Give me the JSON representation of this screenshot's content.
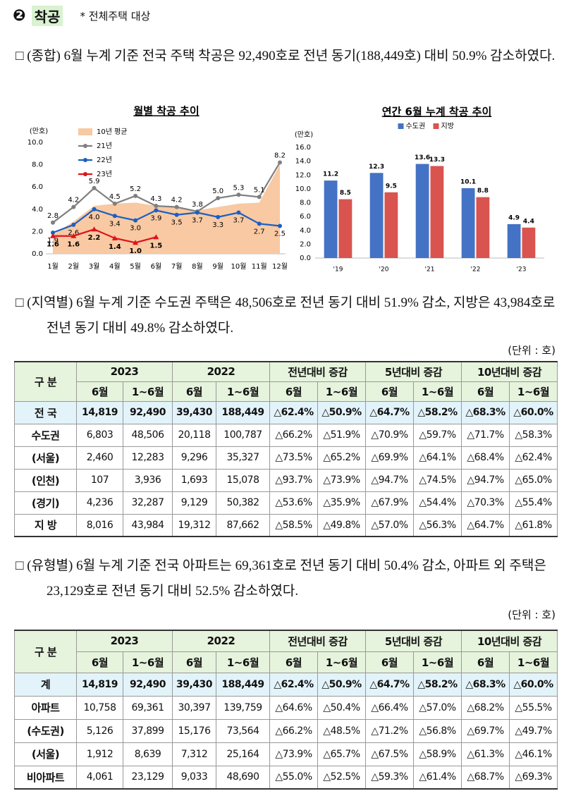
{
  "header": {
    "num": "❷",
    "title": "착공",
    "note": "* 전체주택 대상"
  },
  "paragraphs": [
    "□ (종합) 6월 누계 기준 전국 주택 착공은 92,490호로 전년 동기(188,449호) 대비 50.9% 감소하였다.",
    "□ (지역별) 6월 누계 기준 수도권 주택은 48,506호로 전년 동기 대비 51.9% 감소, 지방은 43,984호로 전년 동기 대비 49.8% 감소하였다.",
    "□ (유형별) 6월 누계 기준 전국 아파트는 69,361호로 전년 동기 대비 50.4% 감소, 아파트 외 주택은 23,129호로 전년 동기 대비 52.5% 감소하였다."
  ],
  "chart_data": [
    {
      "type": "line",
      "title": "월별 착공 추이",
      "y_label": "(만호)",
      "categories": [
        "1월",
        "2월",
        "3월",
        "4월",
        "5월",
        "6월",
        "7월",
        "8월",
        "9월",
        "10월",
        "11월",
        "12월"
      ],
      "ylim": [
        0,
        10
      ],
      "yticks": [
        {
          "value": 0,
          "label": "0.0"
        },
        {
          "value": 2,
          "label": "2.0"
        },
        {
          "value": 4,
          "label": "4.0"
        },
        {
          "value": 6,
          "label": "6.0"
        },
        {
          "value": 8,
          "label": "8.0"
        },
        {
          "value": 10,
          "label": "10.0"
        }
      ],
      "series": [
        {
          "name": "10년 평균",
          "style": "area",
          "color": "#f8c9a2",
          "values": [
            1.7,
            2.9,
            4.3,
            4.5,
            4.6,
            4.3,
            4.2,
            3.9,
            4.2,
            4.5,
            4.6,
            8.0
          ]
        },
        {
          "name": "21년",
          "color": "#7f7f7f",
          "values": [
            2.8,
            4.2,
            5.9,
            4.5,
            5.2,
            4.3,
            4.2,
            3.8,
            5.0,
            5.3,
            5.1,
            8.2
          ],
          "value_labels": [
            "2.8",
            "4.2",
            "5.9",
            "4.5",
            "5.2",
            "4.3",
            "4.2",
            "3.8",
            "5.0",
            "5.3",
            "5.1",
            "8.2"
          ]
        },
        {
          "name": "22년",
          "color": "#1a5fc4",
          "values": [
            1.9,
            2.6,
            4.0,
            3.4,
            3.0,
            3.9,
            3.5,
            3.7,
            3.3,
            3.7,
            2.7,
            2.5
          ],
          "value_labels": [
            "1.9",
            "2.6",
            "4.0",
            "3.4",
            "3.0",
            "3.9",
            "3.5",
            "3.7",
            "3.3",
            "3.7",
            "2.7",
            "2.5"
          ]
        },
        {
          "name": "23년",
          "color": "#e0121b",
          "values": [
            1.6,
            1.6,
            2.2,
            1.4,
            1.0,
            1.5,
            null,
            null,
            null,
            null,
            null,
            null
          ],
          "value_labels": [
            "1.6",
            "1.6",
            "2.2",
            "1.4",
            "1.0",
            "1.5",
            null,
            null,
            null,
            null,
            null,
            null
          ]
        }
      ]
    },
    {
      "type": "bar",
      "title": "연간 6월 누계 착공 추이",
      "y_label": "(만호)",
      "categories": [
        "'19",
        "'20",
        "'21",
        "'22",
        "'23"
      ],
      "ylim": [
        0,
        16
      ],
      "yticks": [
        {
          "value": 0,
          "label": "0.0"
        },
        {
          "value": 2,
          "label": "2.0"
        },
        {
          "value": 4,
          "label": "4.0"
        },
        {
          "value": 6,
          "label": "6.0"
        },
        {
          "value": 8,
          "label": "8.0"
        },
        {
          "value": 10,
          "label": "10.0"
        },
        {
          "value": 12,
          "label": "12.0"
        },
        {
          "value": 14,
          "label": "14.0"
        },
        {
          "value": 16,
          "label": "16.0"
        }
      ],
      "series": [
        {
          "name": "수도권",
          "color": "#4472c4",
          "values": [
            11.2,
            12.3,
            13.6,
            10.1,
            4.9
          ]
        },
        {
          "name": "지방",
          "color": "#d9534f",
          "values": [
            8.5,
            9.5,
            13.3,
            8.8,
            4.4
          ]
        }
      ]
    }
  ],
  "tables": [
    {
      "unit": "(단위 : 호)",
      "header": {
        "label": "구 분",
        "groups": [
          "2023",
          "2022",
          "전년대비 증감",
          "5년대비 증감",
          "10년대비 증감"
        ],
        "sub": [
          "6월",
          "1~6월",
          "6월",
          "1~6월",
          "6월",
          "1~6월",
          "6월",
          "1~6월",
          "6월",
          "1~6월"
        ]
      },
      "rows": [
        {
          "label": "전 국",
          "cells": [
            "14,819",
            "92,490",
            "39,430",
            "188,449",
            "△62.4%",
            "△50.9%",
            "△64.7%",
            "△58.2%",
            "△68.3%",
            "△60.0%"
          ]
        },
        {
          "label": "수도권",
          "cells": [
            "6,803",
            "48,506",
            "20,118",
            "100,787",
            "△66.2%",
            "△51.9%",
            "△70.9%",
            "△59.7%",
            "△71.7%",
            "△58.3%"
          ]
        },
        {
          "label": "(서울)",
          "cells": [
            "2,460",
            "12,283",
            "9,296",
            "35,327",
            "△73.5%",
            "△65.2%",
            "△69.9%",
            "△64.1%",
            "△68.4%",
            "△62.4%"
          ]
        },
        {
          "label": "(인천)",
          "cells": [
            "107",
            "3,936",
            "1,693",
            "15,078",
            "△93.7%",
            "△73.9%",
            "△94.7%",
            "△74.5%",
            "△94.7%",
            "△65.0%"
          ]
        },
        {
          "label": "(경기)",
          "cells": [
            "4,236",
            "32,287",
            "9,129",
            "50,382",
            "△53.6%",
            "△35.9%",
            "△67.9%",
            "△54.4%",
            "△70.3%",
            "△55.4%"
          ]
        },
        {
          "label": "지 방",
          "cells": [
            "8,016",
            "43,984",
            "19,312",
            "87,662",
            "△58.5%",
            "△49.8%",
            "△57.0%",
            "△56.3%",
            "△64.7%",
            "△61.8%"
          ]
        }
      ]
    },
    {
      "unit": "(단위 : 호)",
      "header": {
        "label": "구 분",
        "groups": [
          "2023",
          "2022",
          "전년대비 증감",
          "5년대비 증감",
          "10년대비 증감"
        ],
        "sub": [
          "6월",
          "1~6월",
          "6월",
          "1~6월",
          "6월",
          "1~6월",
          "6월",
          "1~6월",
          "6월",
          "1~6월"
        ]
      },
      "rows": [
        {
          "label": "계",
          "cells": [
            "14,819",
            "92,490",
            "39,430",
            "188,449",
            "△62.4%",
            "△50.9%",
            "△64.7%",
            "△58.2%",
            "△68.3%",
            "△60.0%"
          ]
        },
        {
          "label": "아파트",
          "cells": [
            "10,758",
            "69,361",
            "30,397",
            "139,759",
            "△64.6%",
            "△50.4%",
            "△66.4%",
            "△57.0%",
            "△68.2%",
            "△55.5%"
          ]
        },
        {
          "label": "(수도권)",
          "cells": [
            "5,126",
            "37,899",
            "15,176",
            "73,564",
            "△66.2%",
            "△48.5%",
            "△71.2%",
            "△56.8%",
            "△69.7%",
            "△49.7%"
          ]
        },
        {
          "label": "(서울)",
          "cells": [
            "1,912",
            "8,639",
            "7,312",
            "25,164",
            "△73.9%",
            "△65.7%",
            "△67.5%",
            "△58.9%",
            "△61.3%",
            "△46.1%"
          ]
        },
        {
          "label": "비아파트",
          "cells": [
            "4,061",
            "23,129",
            "9,033",
            "48,690",
            "△55.0%",
            "△52.5%",
            "△59.3%",
            "△61.4%",
            "△68.7%",
            "△69.3%"
          ]
        }
      ]
    }
  ]
}
